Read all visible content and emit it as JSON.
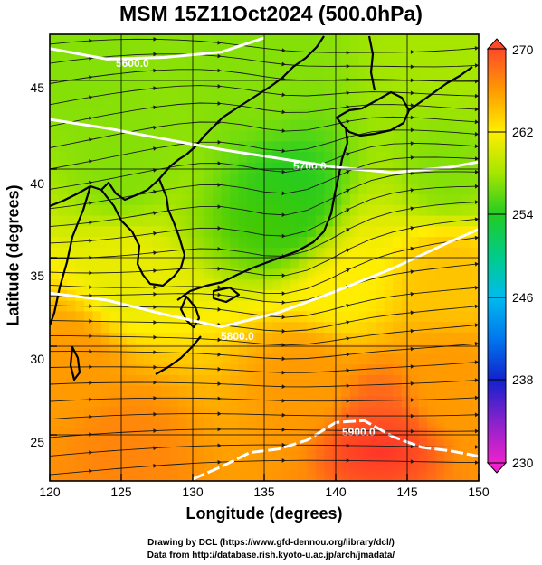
{
  "title": "MSM 15Z11Oct2024 (500.0hPa)",
  "xlabel": "Longitude (degrees)",
  "ylabel": "Latitude  (degrees)",
  "credits": [
    "Drawing by DCL (https://www.gfd-dennou.org/library/dcl/)",
    "Data from http://database.rish.kyoto-u.ac.jp/arch/jmadata/"
  ],
  "x_ticks": [
    "120",
    "125",
    "130",
    "135",
    "140",
    "145",
    "150"
  ],
  "y_ticks": [
    "25",
    "30",
    "35",
    "40",
    "45"
  ],
  "colorbar_ticks": [
    "270",
    "262",
    "254",
    "246",
    "238",
    "230"
  ],
  "contours": [
    {
      "label": "5600.0"
    },
    {
      "label": "5700.0"
    },
    {
      "label": "5800.0"
    },
    {
      "label": "5900.0"
    }
  ],
  "chart_data": {
    "type": "heatmap",
    "title": "MSM 15Z11Oct2024 (500.0hPa)",
    "xlabel": "Longitude (degrees)",
    "ylabel": "Latitude  (degrees)",
    "xlim": [
      120,
      150
    ],
    "ylim": [
      22.4,
      47.6
    ],
    "xticks": [
      120,
      125,
      130,
      135,
      140,
      145,
      150
    ],
    "yticks": [
      25,
      30,
      35,
      40,
      45
    ],
    "colorbar": {
      "min": 230,
      "max": 270,
      "ticks": [
        270,
        262,
        254,
        246,
        238,
        230
      ]
    },
    "field_samples": [
      {
        "lon": 122,
        "lat": 46,
        "value": 257
      },
      {
        "lon": 135,
        "lat": 46,
        "value": 257
      },
      {
        "lon": 148,
        "lat": 46,
        "value": 258
      },
      {
        "lon": 125,
        "lat": 40,
        "value": 257
      },
      {
        "lon": 137,
        "lat": 38,
        "value": 254
      },
      {
        "lon": 148,
        "lat": 40,
        "value": 257
      },
      {
        "lon": 125,
        "lat": 34,
        "value": 261
      },
      {
        "lon": 140,
        "lat": 34,
        "value": 262
      },
      {
        "lon": 148,
        "lat": 34,
        "value": 264
      },
      {
        "lon": 122,
        "lat": 29,
        "value": 266
      },
      {
        "lon": 138,
        "lat": 28,
        "value": 266
      },
      {
        "lon": 148,
        "lat": 28,
        "value": 266
      },
      {
        "lon": 125,
        "lat": 24,
        "value": 267
      },
      {
        "lon": 143,
        "lat": 25,
        "value": 269
      }
    ],
    "contours": [
      {
        "label": "5600.0",
        "points": [
          [
            120,
            46.8
          ],
          [
            124,
            46.2
          ],
          [
            128,
            46.3
          ],
          [
            132,
            46.6
          ],
          [
            135,
            47.4
          ]
        ]
      },
      {
        "label": "5700.0",
        "points": [
          [
            120,
            42.8
          ],
          [
            124,
            42.3
          ],
          [
            128,
            41.7
          ],
          [
            132,
            41.1
          ],
          [
            136,
            40.6
          ],
          [
            140,
            40.1
          ],
          [
            144,
            39.8
          ],
          [
            148,
            40.1
          ],
          [
            150,
            40.4
          ]
        ]
      },
      {
        "label": "5800.0",
        "points": [
          [
            120,
            33.0
          ],
          [
            124,
            32.6
          ],
          [
            128,
            31.8
          ],
          [
            132,
            31.1
          ],
          [
            136,
            31.9
          ],
          [
            140,
            33.1
          ],
          [
            144,
            34.4
          ],
          [
            148,
            35.9
          ],
          [
            150,
            36.6
          ]
        ]
      },
      {
        "label": "5900.0",
        "points": [
          [
            130,
            22.5
          ],
          [
            132,
            23.2
          ],
          [
            134,
            24.0
          ],
          [
            136,
            24.2
          ],
          [
            138,
            24.7
          ],
          [
            140,
            25.7
          ],
          [
            142,
            25.8
          ],
          [
            144,
            24.9
          ],
          [
            146,
            24.3
          ],
          [
            148,
            24.1
          ],
          [
            150,
            23.8
          ]
        ]
      }
    ]
  }
}
